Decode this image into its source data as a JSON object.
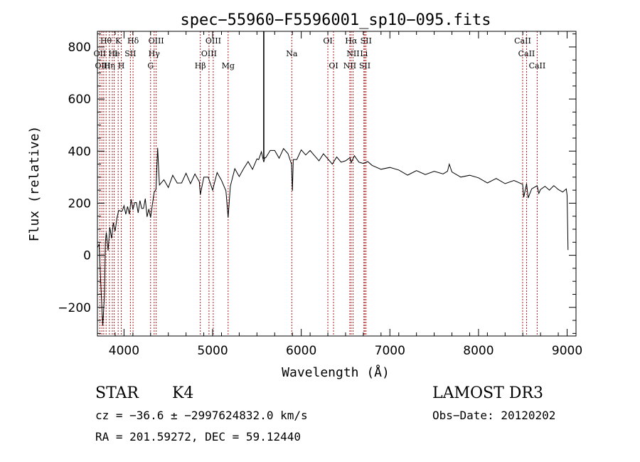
{
  "chart_data": {
    "type": "line",
    "title": "spec−55960−F5596001_sp10−095.fits",
    "xlabel": "Wavelength (Å)",
    "ylabel": "Flux (relative)",
    "xlim": [
      3700,
      9100
    ],
    "ylim": [
      -310,
      860
    ],
    "xticks": [
      4000,
      5000,
      6000,
      7000,
      8000,
      9000
    ],
    "yticks": [
      -200,
      0,
      200,
      400,
      600,
      800
    ],
    "ytick_labels": [
      "−200",
      "0",
      "200",
      "400",
      "600",
      "800"
    ],
    "grid": false,
    "series": [
      {
        "name": "spectrum",
        "x": [
          3700,
          3720,
          3740,
          3760,
          3780,
          3790,
          3800,
          3820,
          3840,
          3860,
          3880,
          3900,
          3920,
          3940,
          3960,
          3980,
          4000,
          4020,
          4040,
          4060,
          4080,
          4100,
          4120,
          4140,
          4160,
          4180,
          4200,
          4220,
          4240,
          4260,
          4280,
          4300,
          4320,
          4340,
          4360,
          4380,
          4400,
          4450,
          4500,
          4550,
          4600,
          4650,
          4700,
          4750,
          4800,
          4850,
          4861,
          4900,
          4950,
          5000,
          5050,
          5100,
          5150,
          5175,
          5200,
          5250,
          5300,
          5350,
          5400,
          5450,
          5500,
          5520,
          5550,
          5577,
          5590,
          5600,
          5650,
          5700,
          5750,
          5800,
          5850,
          5890,
          5900,
          5910,
          5950,
          6000,
          6050,
          6100,
          6150,
          6200,
          6250,
          6300,
          6350,
          6400,
          6450,
          6500,
          6550,
          6563,
          6600,
          6650,
          6700,
          6750,
          6800,
          6900,
          7000,
          7100,
          7200,
          7300,
          7400,
          7500,
          7600,
          7650,
          7670,
          7700,
          7800,
          7900,
          8000,
          8100,
          8200,
          8300,
          8400,
          8498,
          8510,
          8542,
          8560,
          8600,
          8662,
          8680,
          8700,
          8750,
          8800,
          8850,
          8900,
          8950,
          8990,
          9000,
          9010
        ],
        "y": [
          30,
          40,
          -120,
          -280,
          -150,
          60,
          80,
          20,
          120,
          60,
          130,
          80,
          140,
          180,
          160,
          170,
          200,
          150,
          190,
          170,
          210,
          180,
          190,
          200,
          170,
          200,
          180,
          190,
          210,
          150,
          190,
          140,
          200,
          230,
          250,
          420,
          260,
          290,
          270,
          300,
          280,
          290,
          310,
          280,
          300,
          280,
          240,
          290,
          300,
          260,
          310,
          290,
          260,
          140,
          270,
          320,
          300,
          340,
          350,
          330,
          380,
          360,
          400,
          370,
          370,
          380,
          390,
          400,
          380,
          400,
          390,
          360,
          240,
          370,
          380,
          400,
          390,
          390,
          380,
          370,
          380,
          370,
          360,
          370,
          360,
          375,
          370,
          360,
          370,
          355,
          360,
          350,
          345,
          340,
          330,
          330,
          320,
          320,
          315,
          310,
          310,
          330,
          340,
          320,
          310,
          300,
          300,
          290,
          290,
          280,
          275,
          270,
          230,
          265,
          220,
          265,
          260,
          240,
          265,
          260,
          255,
          255,
          250,
          250,
          245,
          230,
          20
        ]
      }
    ],
    "spikes": [
      {
        "x": 5577,
        "y": 860
      }
    ],
    "reference_lines": [
      3727,
      3750,
      3771,
      3798,
      3835,
      3868,
      3889,
      3934,
      3969,
      4072,
      4102,
      4300,
      4340,
      4363,
      4861,
      4959,
      5007,
      5175,
      5893,
      6300,
      6364,
      6548,
      6563,
      6584,
      6707,
      6717,
      6731,
      8498,
      8542,
      8662
    ],
    "annotations": [
      {
        "text": "Hθ",
        "x": 3797,
        "row": 0
      },
      {
        "text": "K",
        "x": 3934,
        "row": 0
      },
      {
        "text": "Hδ",
        "x": 4102,
        "row": 0
      },
      {
        "text": "OIII",
        "x": 4363,
        "row": 0
      },
      {
        "text": "OIII",
        "x": 5007,
        "row": 0
      },
      {
        "text": "OI",
        "x": 6300,
        "row": 0
      },
      {
        "text": "Hα",
        "x": 6563,
        "row": 0
      },
      {
        "text": "SII",
        "x": 6731,
        "row": 0
      },
      {
        "text": "CaII",
        "x": 8498,
        "row": 0
      },
      {
        "text": "OII",
        "x": 3727,
        "row": 1
      },
      {
        "text": "He",
        "x": 3889,
        "row": 1
      },
      {
        "text": "I",
        "x": 3910,
        "row": 1
      },
      {
        "text": "SII",
        "x": 4072,
        "row": 1
      },
      {
        "text": "Hγ",
        "x": 4340,
        "row": 1
      },
      {
        "text": "OIII",
        "x": 4959,
        "row": 1
      },
      {
        "text": "Na",
        "x": 5893,
        "row": 1
      },
      {
        "text": "NII",
        "x": 6584,
        "row": 1
      },
      {
        "text": "Li",
        "x": 6707,
        "row": 1
      },
      {
        "text": "CaII",
        "x": 8542,
        "row": 1
      },
      {
        "text": "OIII",
        "x": 3760,
        "row": 2
      },
      {
        "text": "Hη",
        "x": 3835,
        "row": 2
      },
      {
        "text": "H",
        "x": 3969,
        "row": 2
      },
      {
        "text": "G",
        "x": 4300,
        "row": 2
      },
      {
        "text": "Hβ",
        "x": 4861,
        "row": 2
      },
      {
        "text": "Mg",
        "x": 5175,
        "row": 2
      },
      {
        "text": "OI",
        "x": 6364,
        "row": 2
      },
      {
        "text": "NII",
        "x": 6548,
        "row": 2
      },
      {
        "text": "SII",
        "x": 6717,
        "row": 2
      },
      {
        "text": "CaII",
        "x": 8662,
        "row": 2
      }
    ],
    "colors": {
      "spectrum": "#000000",
      "reference_line": "#b01818",
      "axes": "#000000"
    }
  },
  "info": {
    "object_class": "STAR",
    "subclass": "K4",
    "survey": "LAMOST DR3",
    "redshift_line": "cz = −36.6 ± −2997624832.0 km/s",
    "obs_date": "Obs−Date: 20120202",
    "coords": "RA = 201.59272, DEC =  59.12440"
  }
}
